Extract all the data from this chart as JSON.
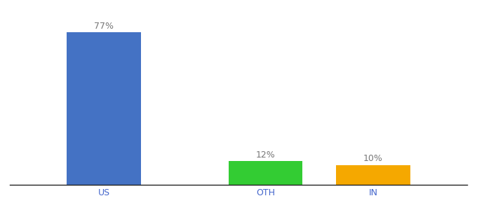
{
  "categories": [
    "US",
    "OTH",
    "IN"
  ],
  "values": [
    77,
    12,
    10
  ],
  "bar_colors": [
    "#4472c4",
    "#33cc33",
    "#f5a800"
  ],
  "value_labels": [
    "77%",
    "12%",
    "10%"
  ],
  "background_color": "#ffffff",
  "label_fontsize": 9,
  "tick_fontsize": 9,
  "bar_width": 0.55,
  "ylim": [
    0,
    88
  ],
  "label_color": "#777777",
  "tick_color": "#4466cc",
  "x_positions": [
    1.0,
    2.2,
    3.0
  ],
  "xlim": [
    0.3,
    3.7
  ]
}
